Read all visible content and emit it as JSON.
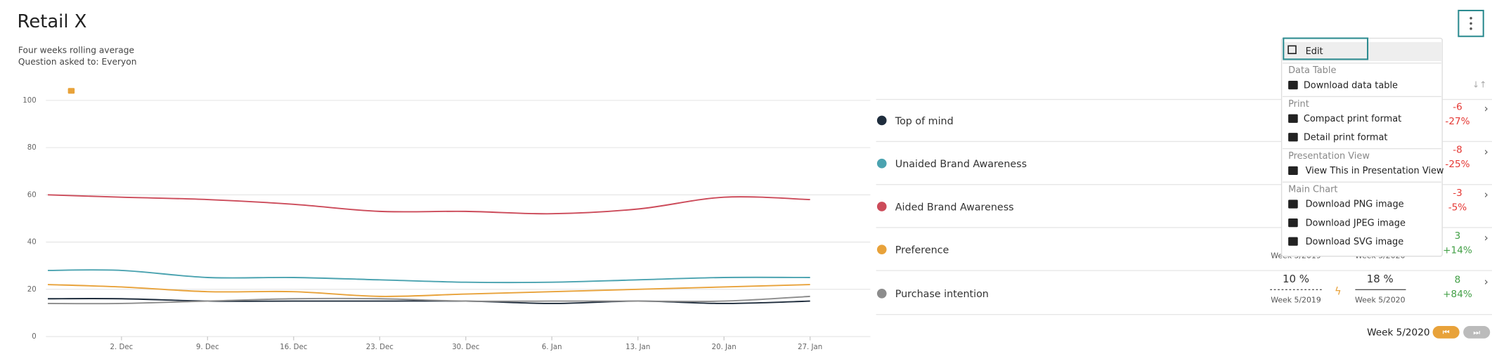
{
  "header": {
    "title": "Retail X",
    "subtitle_lines": [
      "Four weeks rolling average",
      "Question asked to: Everyon"
    ]
  },
  "chart_data": {
    "type": "line",
    "categories": [
      null,
      "2. Dec",
      "9. Dec",
      "16. Dec",
      "23. Dec",
      "30. Dec",
      "6. Jan",
      "13. Jan",
      "20. Jan",
      "27. Jan"
    ],
    "series": [
      {
        "name": "Top of mind",
        "color": "#1f2d3d",
        "values": [
          16,
          16,
          15,
          15,
          15,
          15,
          14,
          15,
          14,
          15
        ]
      },
      {
        "name": "Unaided Brand Awareness",
        "color": "#4ba3b0",
        "values": [
          28,
          28,
          25,
          25,
          24,
          23,
          23,
          24,
          25,
          25
        ]
      },
      {
        "name": "Aided Brand Awareness",
        "color": "#cc4b5a",
        "values": [
          60,
          59,
          58,
          56,
          53,
          53,
          52,
          54,
          59,
          58
        ]
      },
      {
        "name": "Preference",
        "color": "#e8a23a",
        "values": [
          22,
          21,
          19,
          19,
          17,
          18,
          19,
          20,
          21,
          22
        ]
      },
      {
        "name": "Purchase intention",
        "color": "#8c8c8c",
        "values": [
          14,
          14,
          15,
          16,
          16,
          15,
          15,
          15,
          15,
          17
        ]
      }
    ],
    "ylim": [
      0,
      100
    ],
    "yticks": [
      0,
      20,
      40,
      60,
      80,
      100
    ],
    "grid": true
  },
  "comparison_table": {
    "rows": [
      {
        "change": -6,
        "change_pct": "-27%"
      },
      {
        "change": -8,
        "change_pct": "-25%"
      },
      {
        "change": -3,
        "change_pct": "-5%"
      },
      {
        "previous_period": "Week 5/2019",
        "current_period": "Week 5/2020",
        "change": 3,
        "change_pct": "+14%"
      },
      {
        "previous": "10 %",
        "previous_period": "Week 5/2019",
        "current": "18 %",
        "current_period": "Week 5/2020",
        "change": 8,
        "change_pct": "+84%"
      }
    ]
  },
  "menu": {
    "edit": "Edit",
    "sections": [
      {
        "title": "Data Table",
        "items": [
          "Download data table"
        ]
      },
      {
        "title": "Print",
        "items": [
          "Compact print format",
          "Detail print format"
        ]
      },
      {
        "title": "Presentation View",
        "items": [
          "View This in Presentation View"
        ]
      },
      {
        "title": "Main Chart",
        "items": [
          "Download PNG image",
          "Download JPEG image",
          "Download SVG image"
        ]
      }
    ]
  },
  "period_selector": "Week 5/2020"
}
